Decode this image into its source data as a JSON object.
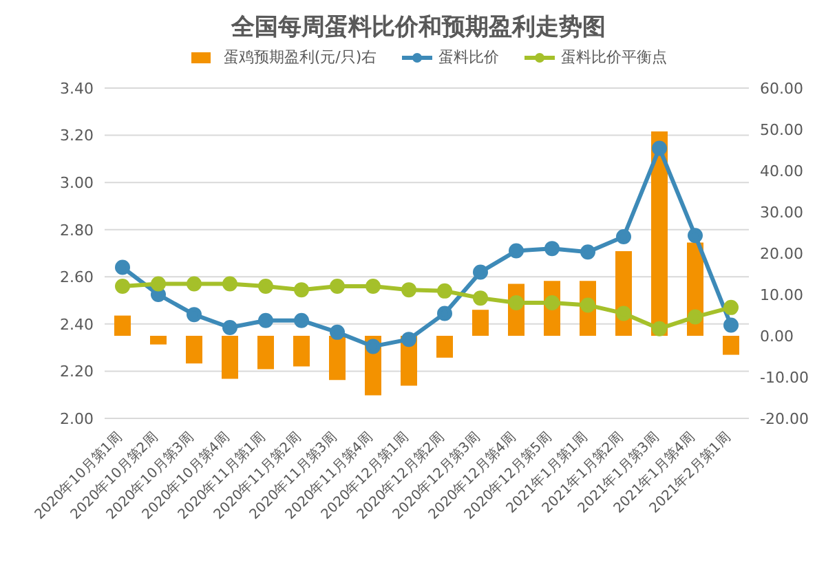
{
  "chart_data": {
    "type": "bar",
    "title": "全国每周蛋料比价和预期盈利走势图",
    "categories": [
      "2020年10月第1周",
      "2020年10月第2周",
      "2020年10月第3周",
      "2020年10月第4周",
      "2020年11月第1周",
      "2020年11月第2周",
      "2020年11月第3周",
      "2020年11月第4周",
      "2020年12月第1周",
      "2020年12月第2周",
      "2020年12月第3周",
      "2020年12月第4周",
      "2020年12月第5周",
      "2021年1月第1周",
      "2021年1月第2周",
      "2021年1月第3周",
      "2021年1月第4周",
      "2021年2月第1周"
    ],
    "series": [
      {
        "name": "蛋鸡预期盈利(元/只)右",
        "axis": "y2",
        "color": "#f39200",
        "values": [
          4.9,
          -2.1,
          -6.7,
          -10.4,
          -8.1,
          -7.4,
          -10.7,
          -14.4,
          -12.1,
          -5.3,
          6.3,
          12.6,
          13.3,
          13.3,
          20.5,
          49.5,
          22.6,
          -4.6
        ]
      },
      {
        "name": "蛋料比价",
        "type": "line",
        "color": "#3d8ab8",
        "values": [
          2.64,
          2.525,
          2.44,
          2.385,
          2.415,
          2.415,
          2.365,
          2.305,
          2.335,
          2.445,
          2.62,
          2.71,
          2.72,
          2.705,
          2.77,
          3.145,
          2.775,
          2.395
        ]
      },
      {
        "name": "蛋料比价平衡点",
        "type": "line",
        "color": "#a5c02a",
        "values": [
          2.56,
          2.57,
          2.57,
          2.57,
          2.56,
          2.545,
          2.56,
          2.56,
          2.545,
          2.54,
          2.51,
          2.49,
          2.49,
          2.48,
          2.445,
          2.38,
          2.43,
          2.47
        ]
      }
    ],
    "ylim": [
      2,
      3.4
    ],
    "yticks": [
      {
        "value": 2,
        "label": "2.00"
      },
      {
        "value": 2.2,
        "label": "2.20"
      },
      {
        "value": 2.4,
        "label": "2.40"
      },
      {
        "value": 2.6,
        "label": "2.60"
      },
      {
        "value": 2.8,
        "label": "2.80"
      },
      {
        "value": 3,
        "label": "3.00"
      },
      {
        "value": 3.2,
        "label": "3.20"
      },
      {
        "value": 3.4,
        "label": "3.40"
      }
    ],
    "y2lim": [
      -20,
      60
    ],
    "y2ticks": [
      {
        "value": -20,
        "label": "-20.00"
      },
      {
        "value": -10,
        "label": "-10.00"
      },
      {
        "value": 0,
        "label": "0.00"
      },
      {
        "value": 10,
        "label": "10.00"
      },
      {
        "value": 20,
        "label": "20.00"
      },
      {
        "value": 30,
        "label": "30.00"
      },
      {
        "value": 40,
        "label": "40.00"
      },
      {
        "value": 50,
        "label": "50.00"
      },
      {
        "value": 60,
        "label": "60.00"
      }
    ],
    "grid": "y",
    "legend": "top",
    "marker": "circle",
    "line_style": "solid"
  }
}
